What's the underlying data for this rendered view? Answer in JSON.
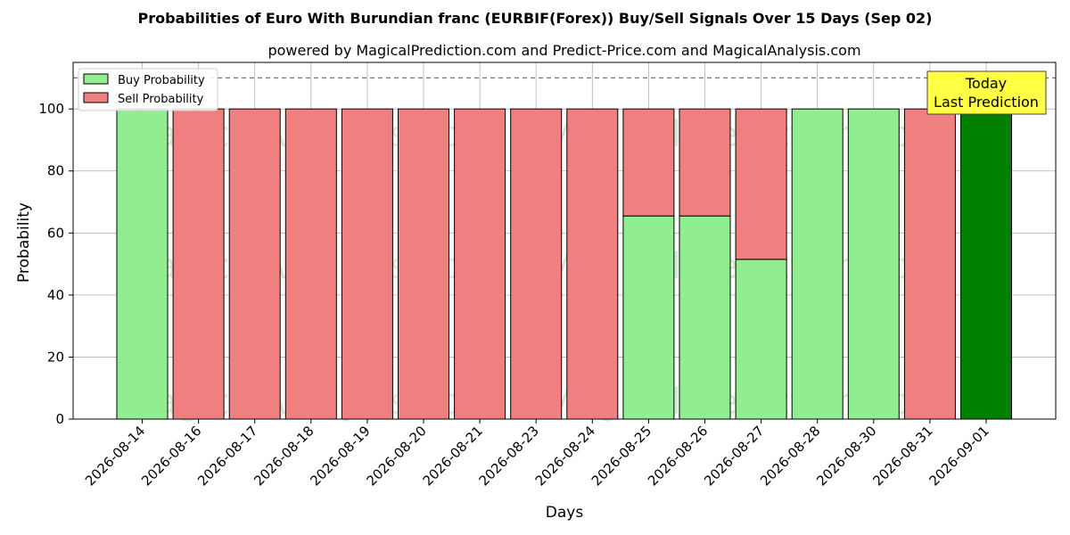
{
  "chart_data": {
    "type": "bar",
    "stacked": true,
    "title": "Probabilities of Euro With Burundian franc (EURBIF(Forex)) Buy/Sell Signals Over 15 Days (Sep 02)",
    "subtitle": "powered by MagicalPrediction.com and Predict-Price.com and MagicalAnalysis.com",
    "xlabel": "Days",
    "ylabel": "Probability",
    "ylim": [
      0,
      115
    ],
    "yticks": [
      0,
      20,
      40,
      60,
      80,
      100
    ],
    "grid": true,
    "reference_line": 110,
    "legend_placement": "top-left",
    "categories": [
      "2026-08-14",
      "2026-08-16",
      "2026-08-17",
      "2026-08-18",
      "2026-08-19",
      "2026-08-20",
      "2026-08-21",
      "2026-08-23",
      "2026-08-24",
      "2026-08-25",
      "2026-08-26",
      "2026-08-27",
      "2026-08-28",
      "2026-08-30",
      "2026-08-31",
      "2026-09-01"
    ],
    "series": [
      {
        "name": "Buy Probability",
        "color": "#90ee90",
        "values": [
          100,
          0,
          0,
          0,
          0,
          0,
          0,
          0,
          0,
          65.5,
          65.5,
          51.5,
          100,
          100,
          0,
          100
        ]
      },
      {
        "name": "Sell Probability",
        "color": "#f08080",
        "values": [
          0,
          100,
          100,
          100,
          100,
          100,
          100,
          100,
          100,
          34.5,
          34.5,
          48.5,
          0,
          0,
          100,
          0
        ]
      }
    ],
    "highlight": {
      "index": 15,
      "color": "#008000"
    },
    "annotation": {
      "line1": "Today",
      "line2": "Last Prediction",
      "bg": "#ffff44"
    },
    "watermark": "MagicalAnalysis.com",
    "watermark2": "MagicalPrediction.com"
  }
}
